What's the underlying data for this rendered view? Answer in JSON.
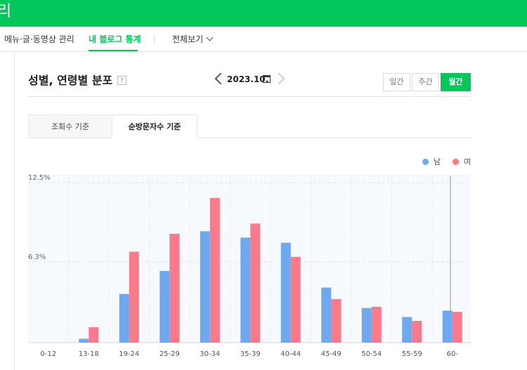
{
  "app": {
    "title_fragment": "리"
  },
  "subnav": {
    "items": [
      "메뉴·글·동영상 관리",
      "내 블로그 통계",
      "전체보기"
    ],
    "active_index": 1
  },
  "header": {
    "title": "성별, 연령별 분포",
    "help_icon": "?",
    "date": "2023.10."
  },
  "period_buttons": [
    {
      "label": "일간",
      "active": false
    },
    {
      "label": "주간",
      "active": false
    },
    {
      "label": "월간",
      "active": true
    }
  ],
  "tabs": [
    {
      "label": "조회수 기준",
      "active": false
    },
    {
      "label": "순방문자수 기준",
      "active": true
    }
  ],
  "legend": {
    "male": "남",
    "female": "여"
  },
  "colors": {
    "brand": "#03c75a",
    "male": "#6ea8ee",
    "female": "#fb7a89"
  },
  "chart_data": {
    "type": "bar",
    "categories": [
      "0-12",
      "13-18",
      "19-24",
      "25-29",
      "30-34",
      "35-39",
      "40-44",
      "45-49",
      "50-54",
      "55-59",
      "60-"
    ],
    "series": [
      {
        "name": "남",
        "values": [
          0,
          0.3,
          3.8,
          5.6,
          8.7,
          8.2,
          7.8,
          4.3,
          2.7,
          2.0,
          2.5
        ]
      },
      {
        "name": "여",
        "values": [
          0,
          1.2,
          7.1,
          8.5,
          11.3,
          9.3,
          6.7,
          3.4,
          2.8,
          1.7,
          2.4
        ]
      }
    ],
    "ytick_labels": [
      "12.5%",
      "6.3%"
    ],
    "ytick_values": [
      12.5,
      6.3
    ],
    "ylim": [
      0,
      12.5
    ],
    "grid": true,
    "legend_position": "top-right"
  }
}
